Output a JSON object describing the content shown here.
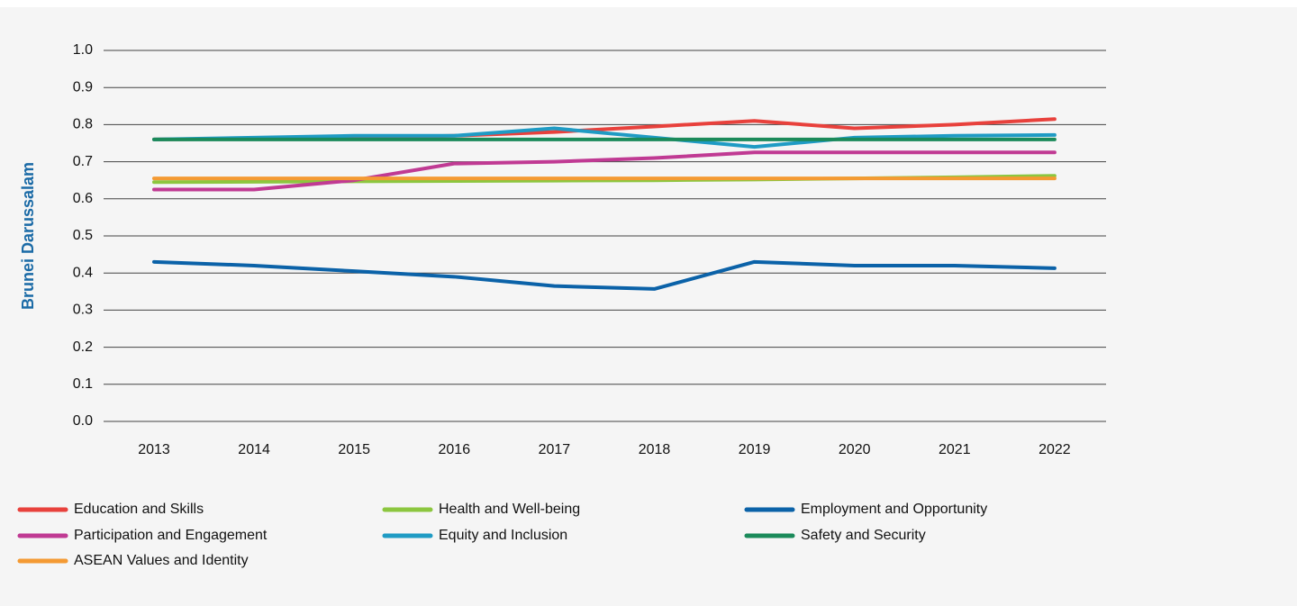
{
  "chart_data": {
    "type": "line",
    "y_label": "Brunei Darussalam",
    "categories": [
      "2013",
      "2014",
      "2015",
      "2016",
      "2017",
      "2018",
      "2019",
      "2020",
      "2021",
      "2022"
    ],
    "ylim": [
      0,
      1
    ],
    "yticks": [
      {
        "value": 0,
        "label": "0.0"
      },
      0.1,
      0.2,
      0.3,
      0.4,
      0.5,
      0.6,
      0.7,
      0.8,
      0.9,
      {
        "value": 1,
        "label": "1.0"
      }
    ],
    "grid": true,
    "legend": "bottom",
    "series": [
      {
        "name": "Education and Skills",
        "color": "#e8413c",
        "values": [
          0.76,
          0.762,
          0.765,
          0.77,
          0.78,
          0.795,
          0.81,
          0.79,
          0.8,
          0.815
        ]
      },
      {
        "name": "Health and Well-being",
        "color": "#8cc63f",
        "values": [
          0.645,
          0.646,
          0.647,
          0.648,
          0.649,
          0.65,
          0.652,
          0.655,
          0.658,
          0.662
        ]
      },
      {
        "name": "Employment and Opportunity",
        "color": "#0b62a8",
        "values": [
          0.43,
          0.42,
          0.405,
          0.39,
          0.365,
          0.357,
          0.43,
          0.42,
          0.42,
          0.413
        ]
      },
      {
        "name": "Participation and Engagement",
        "color": "#c03a93",
        "values": [
          0.625,
          0.625,
          0.65,
          0.695,
          0.7,
          0.71,
          0.725,
          0.725,
          0.725,
          0.725
        ]
      },
      {
        "name": "Equity and Inclusion",
        "color": "#1f9bc4",
        "values": [
          0.76,
          0.765,
          0.77,
          0.77,
          0.79,
          0.765,
          0.74,
          0.765,
          0.77,
          0.772
        ]
      },
      {
        "name": "Safety and Security",
        "color": "#1b8a5a",
        "values": [
          0.76,
          0.76,
          0.76,
          0.76,
          0.76,
          0.76,
          0.76,
          0.76,
          0.76,
          0.76
        ]
      },
      {
        "name": "ASEAN Values and Identity",
        "color": "#f49a33",
        "values": [
          0.655,
          0.655,
          0.655,
          0.655,
          0.655,
          0.655,
          0.655,
          0.655,
          0.655,
          0.655
        ]
      }
    ]
  }
}
